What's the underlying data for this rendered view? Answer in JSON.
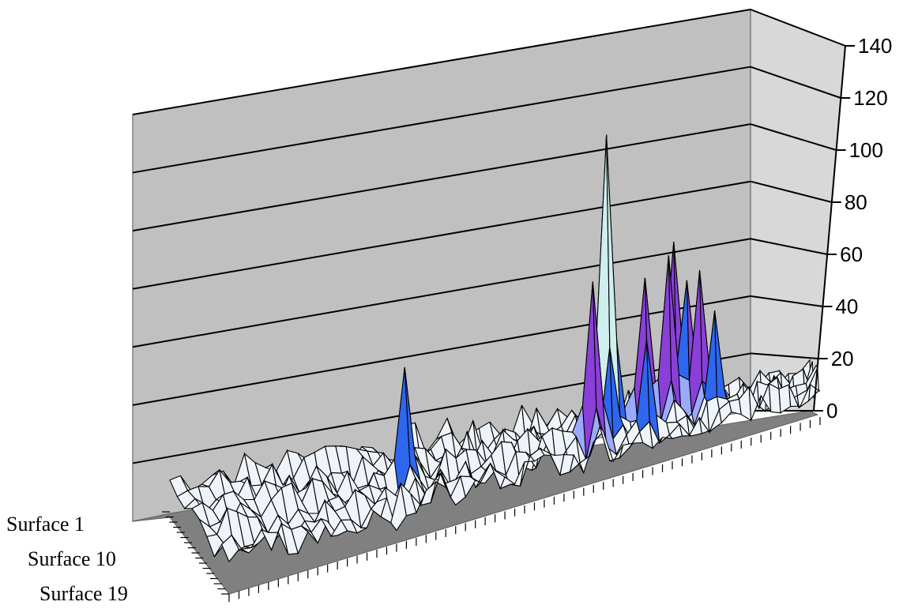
{
  "chart_data": {
    "type": "surface",
    "title": "",
    "zlabel": "",
    "zlim": [
      0,
      140
    ],
    "z_ticks": [
      "0",
      "20",
      "40",
      "60",
      "80",
      "100",
      "120",
      "140"
    ],
    "depth_labels": [
      "Surface 1",
      "Surface 10",
      "Surface 19"
    ],
    "band_colors": [
      "#eef4fa",
      "#9aaaff",
      "#2f66ee",
      "#8a40d8",
      "#cfeeee"
    ],
    "peaks": [
      {
        "x": 20,
        "y": 4,
        "value": 52
      },
      {
        "x": 40,
        "y": 3,
        "value": 120
      },
      {
        "x": 38,
        "y": 5,
        "value": 70
      },
      {
        "x": 44,
        "y": 2,
        "value": 62
      },
      {
        "x": 46,
        "y": 3,
        "value": 70
      },
      {
        "x": 48,
        "y": 2,
        "value": 58
      },
      {
        "x": 49,
        "y": 3,
        "value": 62
      },
      {
        "x": 47,
        "y": 1,
        "value": 72
      },
      {
        "x": 43,
        "y": 6,
        "value": 45
      },
      {
        "x": 50,
        "y": 5,
        "value": 48
      }
    ]
  }
}
